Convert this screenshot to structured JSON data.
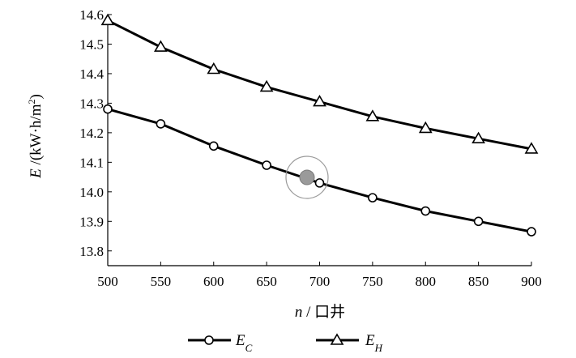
{
  "chart_data": {
    "type": "line",
    "x": [
      500,
      550,
      600,
      650,
      700,
      750,
      800,
      850,
      900
    ],
    "series": [
      {
        "name": "E",
        "subscript": "C",
        "marker": "circle",
        "values": [
          14.28,
          14.23,
          14.155,
          14.09,
          14.03,
          13.98,
          13.935,
          13.9,
          13.865
        ]
      },
      {
        "name": "E",
        "subscript": "H",
        "marker": "triangle",
        "values": [
          14.58,
          14.49,
          14.415,
          14.355,
          14.305,
          14.255,
          14.215,
          14.18,
          14.145
        ]
      }
    ],
    "xlim": [
      500,
      900
    ],
    "ylim": [
      13.75,
      14.6
    ],
    "xticks": [
      "500",
      "550",
      "600",
      "650",
      "700",
      "750",
      "800",
      "850",
      "900"
    ],
    "yticks": [
      "13.8",
      "13.9",
      "14.0",
      "14.1",
      "14.2",
      "14.3",
      "14.4",
      "14.5",
      "14.6"
    ],
    "xlabel": {
      "var": "n",
      "rest": " / 口井"
    },
    "ylabel": {
      "var": "E",
      "rest": " /(kW·h/m",
      "sup": "2",
      "end": ")"
    },
    "grid": false,
    "legend": "bottom",
    "colors": {
      "line": "#000000",
      "marker_fill": "#ffffff",
      "highlight": "#9a9a9a"
    }
  }
}
